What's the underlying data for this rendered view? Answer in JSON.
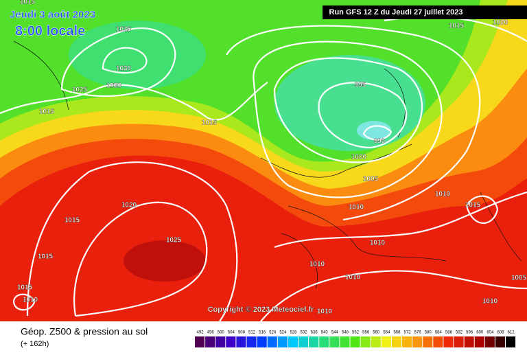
{
  "header": {
    "date": "Jeudi 3 août 2023",
    "time": "8:00 locale",
    "run": "Run GFS 12 Z du Jeudi 27 juillet 2023"
  },
  "isobar_labels": [
    "1015",
    "1025",
    "1030",
    "1025",
    "1020",
    "1015",
    "1015",
    "995",
    "990",
    "1000",
    "1005",
    "1010",
    "1010",
    "1015",
    "1020",
    "1015",
    "1025",
    "1015",
    "1010",
    "1010",
    "1010",
    "1015",
    "1010",
    "1010",
    "1010",
    "1005",
    "1015",
    "1020"
  ],
  "copyright": "Copyright © 2023 Meteociel.fr",
  "legend": {
    "title": "Géop. Z500 & pression au sol",
    "subtitle": "(+ 162h)",
    "scale": [
      492,
      496,
      500,
      504,
      508,
      512,
      516,
      520,
      524,
      528,
      532,
      536,
      540,
      544,
      548,
      552,
      556,
      560,
      564,
      568,
      572,
      576,
      580,
      584,
      588,
      592,
      596,
      600,
      604,
      608,
      612
    ]
  }
}
